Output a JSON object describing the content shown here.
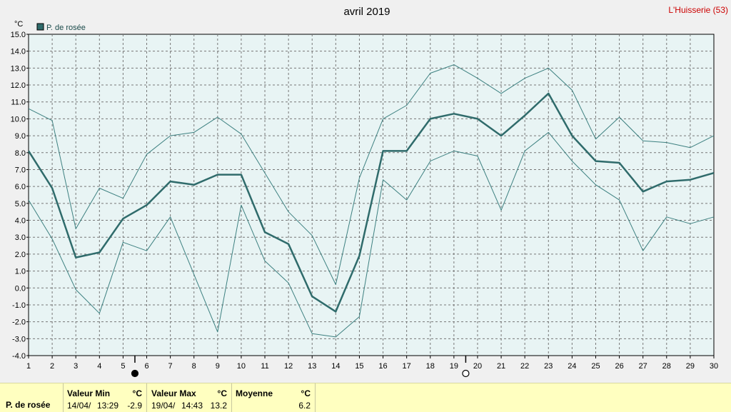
{
  "header": {
    "title": "avril 2019",
    "location": "L'Huisserie (53)"
  },
  "chart_data": {
    "type": "line",
    "y_unit": "°C",
    "ylim": [
      -4.0,
      15.0
    ],
    "y_ticks": [
      "15.0",
      "14.0",
      "13.0",
      "12.0",
      "11.0",
      "10.0",
      "9.0",
      "8.0",
      "7.0",
      "6.0",
      "5.0",
      "4.0",
      "3.0",
      "2.0",
      "1.0",
      "0.0",
      "-1.0",
      "-2.0",
      "-3.0",
      "-4.0"
    ],
    "x": [
      1,
      2,
      3,
      4,
      5,
      6,
      7,
      8,
      9,
      10,
      11,
      12,
      13,
      14,
      15,
      16,
      17,
      18,
      19,
      20,
      21,
      22,
      23,
      24,
      25,
      26,
      27,
      28,
      29,
      30
    ],
    "grid": true,
    "legend_position": "top-left",
    "series": [
      {
        "name": "P. de rosée",
        "role": "mean",
        "color": "#2f6b6b",
        "values": [
          8.1,
          5.9,
          1.8,
          2.1,
          4.1,
          4.9,
          6.3,
          6.1,
          6.7,
          6.7,
          3.3,
          2.6,
          -0.5,
          -1.4,
          1.9,
          8.1,
          8.1,
          10.0,
          10.3,
          10.0,
          9.0,
          10.2,
          11.5,
          9.0,
          7.5,
          7.4,
          5.7,
          6.3,
          6.4,
          6.8
        ]
      },
      {
        "role": "max",
        "color": "#3d8080",
        "values": [
          10.6,
          9.9,
          3.5,
          5.9,
          5.3,
          7.9,
          9.0,
          9.2,
          10.1,
          9.1,
          6.8,
          4.5,
          3.1,
          0.2,
          6.5,
          10.0,
          10.8,
          12.7,
          13.2,
          12.4,
          11.5,
          12.4,
          13.0,
          11.7,
          8.8,
          10.1,
          8.7,
          8.6,
          8.3,
          9.0
        ]
      },
      {
        "role": "min",
        "color": "#3d8080",
        "values": [
          5.2,
          2.9,
          -0.1,
          -1.5,
          2.7,
          2.2,
          4.2,
          0.8,
          -2.6,
          4.9,
          1.6,
          0.3,
          -2.7,
          -2.9,
          -1.7,
          6.4,
          5.2,
          7.5,
          8.1,
          7.8,
          4.6,
          8.1,
          9.2,
          7.5,
          6.1,
          5.2,
          2.2,
          4.2,
          3.8,
          4.2
        ]
      }
    ],
    "moon_phases": [
      {
        "day": 5.5,
        "phase": "new-moon"
      },
      {
        "day": 19.5,
        "phase": "full-moon"
      }
    ]
  },
  "stats": {
    "row_label": "P. de rosée",
    "min": {
      "label": "Valeur Min",
      "unit": "°C",
      "date": "14/04/",
      "time": "13:29",
      "value": "-2.9"
    },
    "max": {
      "label": "Valeur Max",
      "unit": "°C",
      "date": "19/04/",
      "time": "14:43",
      "value": "13.2"
    },
    "avg": {
      "label": "Moyenne",
      "unit": "°C",
      "value": "6.2"
    }
  }
}
